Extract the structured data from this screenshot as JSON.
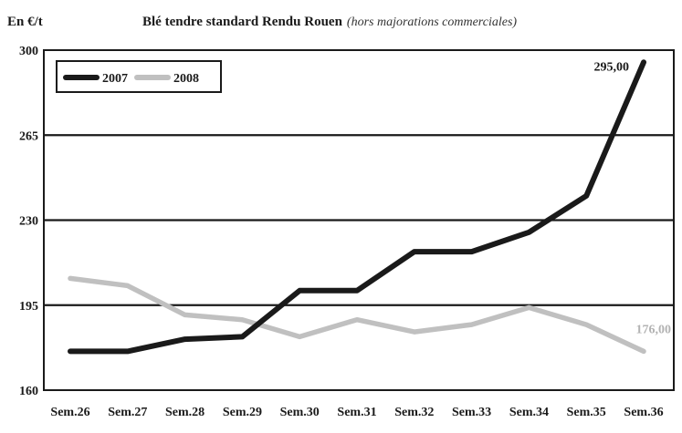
{
  "chart_data": {
    "type": "line",
    "unit_label": "En €/t",
    "title": "Blé tendre standard Rendu Rouen",
    "subtitle": "(hors majorations commerciales)",
    "categories": [
      "Sem.26",
      "Sem.27",
      "Sem.28",
      "Sem.29",
      "Sem.30",
      "Sem.31",
      "Sem.32",
      "Sem.33",
      "Sem.34",
      "Sem.35",
      "Sem.36"
    ],
    "series": [
      {
        "name": "2007",
        "color": "#1a1a1a",
        "values": [
          176,
          176,
          181,
          182,
          201,
          201,
          217,
          217,
          225,
          240,
          295
        ],
        "end_label": "295,00"
      },
      {
        "name": "2008",
        "color": "#c0c0c0",
        "values": [
          206,
          203,
          191,
          189,
          182,
          189,
          184,
          187,
          194,
          187,
          176
        ],
        "end_label": "176,00"
      }
    ],
    "ylim": [
      160,
      300
    ],
    "yticks": [
      160,
      195,
      230,
      265,
      300
    ],
    "ytick_labels": [
      "160",
      "195",
      "230",
      "265",
      "300"
    ],
    "grid": "horizontal",
    "legend_position": "top-left"
  }
}
